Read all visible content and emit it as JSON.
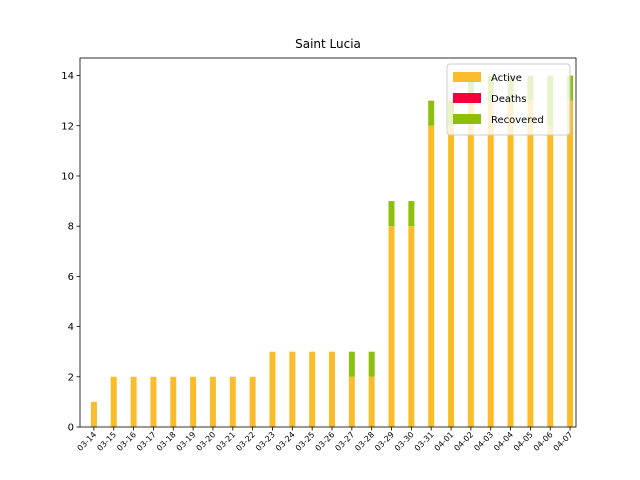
{
  "chart_data": {
    "type": "bar",
    "stacked": true,
    "title": "Saint Lucia",
    "xlabel": "",
    "ylabel": "",
    "ylim": [
      0,
      14.7
    ],
    "yticks": [
      0,
      2,
      4,
      6,
      8,
      10,
      12,
      14
    ],
    "categories": [
      "03-14",
      "03-15",
      "03-16",
      "03-17",
      "03-18",
      "03-19",
      "03-20",
      "03-21",
      "03-22",
      "03-23",
      "03-24",
      "03-25",
      "03-26",
      "03-27",
      "03-28",
      "03-29",
      "03-30",
      "03-31",
      "04-01",
      "04-02",
      "04-03",
      "04-04",
      "04-05",
      "04-06",
      "04-07"
    ],
    "series": [
      {
        "name": "Active",
        "color": "#fbbc2c",
        "values": [
          1,
          2,
          2,
          2,
          2,
          2,
          2,
          2,
          2,
          3,
          3,
          3,
          3,
          2,
          2,
          8,
          8,
          12,
          12,
          13,
          13,
          13,
          13,
          12,
          13
        ]
      },
      {
        "name": "Deaths",
        "color": "#f0003c",
        "values": [
          0,
          0,
          0,
          0,
          0,
          0,
          0,
          0,
          0,
          0,
          0,
          0,
          0,
          0,
          0,
          0,
          0,
          0,
          0,
          0,
          0,
          0,
          0,
          0,
          0
        ]
      },
      {
        "name": "Recovered",
        "color": "#8cc00c",
        "values": [
          0,
          0,
          0,
          0,
          0,
          0,
          0,
          0,
          0,
          0,
          0,
          0,
          0,
          1,
          1,
          1,
          1,
          1,
          1,
          1,
          1,
          1,
          1,
          2,
          1
        ]
      }
    ],
    "grid": false,
    "legend_position": "top-right"
  }
}
